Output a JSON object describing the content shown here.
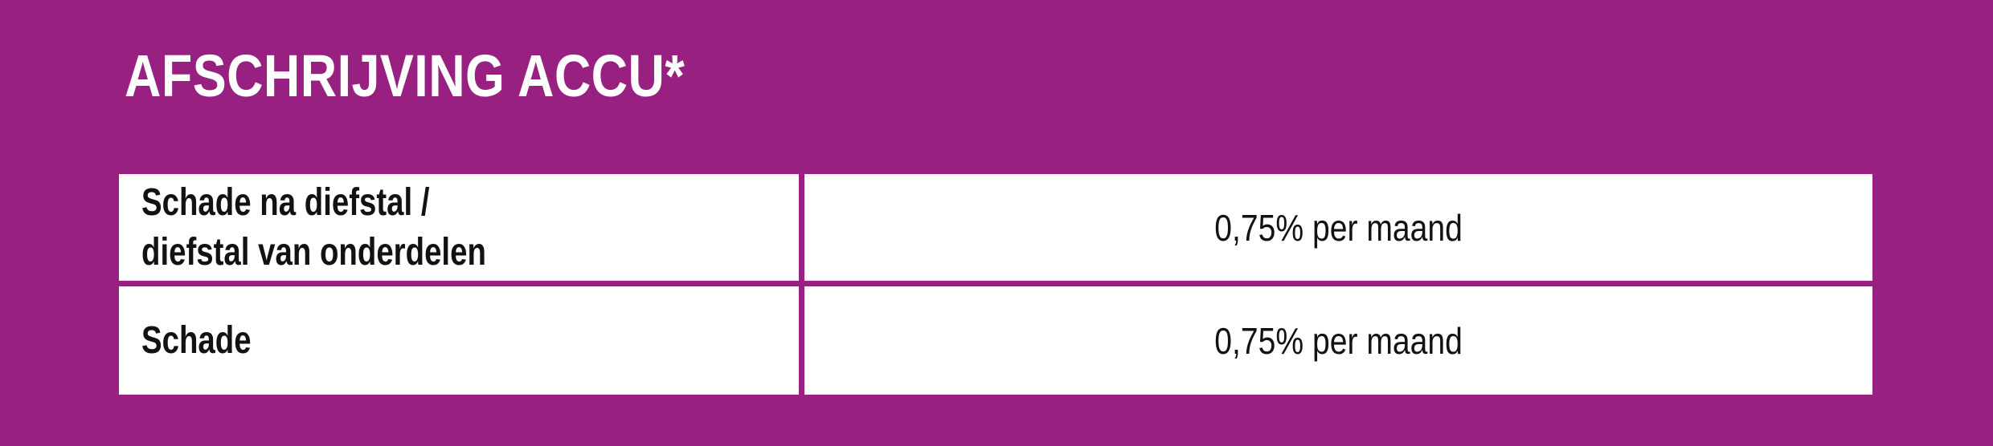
{
  "colors": {
    "background": "#972081",
    "cell_background": "#FFFFFF",
    "text": "#121212",
    "title": "#FFFFFF"
  },
  "title": "AFSCHRIJVING ACCU*",
  "table": {
    "rows": [
      {
        "label": "Schade na diefstal /\ndiefstal van onderdelen",
        "value": "0,75% per maand"
      },
      {
        "label": "Schade",
        "value": "0,75% per maand"
      }
    ]
  }
}
